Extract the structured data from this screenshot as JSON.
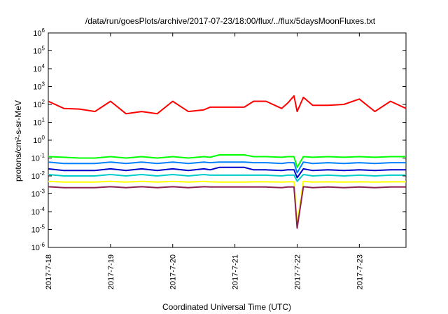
{
  "chart_data": {
    "type": "line",
    "title": "/data/run/goesPlots/archive/2017-07-23/18:00/flux/../flux/5daysMoonFluxes.txt",
    "xlabel": "Coordinated Universal Time (UTC)",
    "ylabel": "protons/cm²-s-sr-MeV",
    "yscale": "log",
    "ylim": [
      1e-06,
      1000000.0
    ],
    "xlim": [
      "2017-07-18",
      "2017-07-23 18:00"
    ],
    "grid": false,
    "legend": "none",
    "x_ticks": [
      "2017-7-18",
      "2017-7-19",
      "2017-7-20",
      "2017-7-21",
      "2017-7-22",
      "2017-7-23"
    ],
    "y_ticks": [
      {
        "mant": "10",
        "exp": "-6"
      },
      {
        "mant": "10",
        "exp": "-5"
      },
      {
        "mant": "10",
        "exp": "-4"
      },
      {
        "mant": "10",
        "exp": "-3"
      },
      {
        "mant": "10",
        "exp": "-2"
      },
      {
        "mant": "10",
        "exp": "-1"
      },
      {
        "mant": "10",
        "exp": "0"
      },
      {
        "mant": "10",
        "exp": "1"
      },
      {
        "mant": "10",
        "exp": "2"
      },
      {
        "mant": "10",
        "exp": "3"
      },
      {
        "mant": "10",
        "exp": "4"
      },
      {
        "mant": "10",
        "exp": "5"
      },
      {
        "mant": "10",
        "exp": "6"
      }
    ],
    "x_days": [
      0,
      0.25,
      0.5,
      0.75,
      1.0,
      1.25,
      1.5,
      1.75,
      2.0,
      2.25,
      2.5,
      2.6,
      2.75,
      3.0,
      3.15,
      3.3,
      3.5,
      3.75,
      3.85,
      3.95,
      4.0,
      4.1,
      4.25,
      4.5,
      4.75,
      5.0,
      5.25,
      5.5,
      5.75
    ],
    "series": [
      {
        "color": "#ff0000",
        "values": [
          150,
          60,
          55,
          40,
          150,
          30,
          40,
          30,
          150,
          40,
          50,
          70,
          70,
          70,
          70,
          150,
          150,
          60,
          120,
          300,
          40,
          250,
          90,
          90,
          100,
          200,
          40,
          150,
          60
        ]
      },
      {
        "color": "#00ff00",
        "values": [
          0.12,
          0.11,
          0.1,
          0.1,
          0.12,
          0.1,
          0.12,
          0.1,
          0.12,
          0.1,
          0.12,
          0.11,
          0.15,
          0.15,
          0.15,
          0.12,
          0.12,
          0.11,
          0.12,
          0.12,
          0.03,
          0.12,
          0.11,
          0.12,
          0.11,
          0.12,
          0.11,
          0.12,
          0.12
        ]
      },
      {
        "color": "#0080ff",
        "values": [
          0.06,
          0.05,
          0.05,
          0.05,
          0.06,
          0.05,
          0.06,
          0.05,
          0.06,
          0.05,
          0.06,
          0.055,
          0.06,
          0.06,
          0.06,
          0.055,
          0.055,
          0.05,
          0.055,
          0.055,
          0.015,
          0.06,
          0.05,
          0.055,
          0.05,
          0.055,
          0.05,
          0.055,
          0.055
        ]
      },
      {
        "color": "#0000cc",
        "values": [
          0.025,
          0.02,
          0.02,
          0.02,
          0.025,
          0.02,
          0.025,
          0.02,
          0.025,
          0.02,
          0.025,
          0.022,
          0.03,
          0.03,
          0.03,
          0.022,
          0.022,
          0.02,
          0.022,
          0.022,
          0.008,
          0.025,
          0.02,
          0.022,
          0.02,
          0.022,
          0.02,
          0.022,
          0.022
        ]
      },
      {
        "color": "#00cccc",
        "values": [
          0.012,
          0.01,
          0.01,
          0.01,
          0.012,
          0.01,
          0.012,
          0.01,
          0.012,
          0.01,
          0.012,
          0.011,
          0.011,
          0.011,
          0.011,
          0.011,
          0.011,
          0.01,
          0.011,
          0.011,
          0.005,
          0.012,
          0.01,
          0.011,
          0.01,
          0.011,
          0.01,
          0.011,
          0.011
        ]
      },
      {
        "color": "#ffff00",
        "values": [
          0.005,
          0.0045,
          0.0045,
          0.0045,
          0.005,
          0.0045,
          0.005,
          0.0045,
          0.005,
          0.0045,
          0.005,
          0.0047,
          0.0045,
          0.0045,
          0.0045,
          0.0047,
          0.0047,
          0.0045,
          0.0047,
          0.0047,
          2e-05,
          0.005,
          0.0045,
          0.0047,
          0.0045,
          0.0047,
          0.0045,
          0.0047,
          0.0047
        ]
      },
      {
        "color": "#8b2252",
        "values": [
          0.0025,
          0.0022,
          0.0022,
          0.0022,
          0.0025,
          0.0022,
          0.0025,
          0.0022,
          0.0025,
          0.0022,
          0.0025,
          0.0024,
          0.0024,
          0.0024,
          0.0024,
          0.0024,
          0.0024,
          0.0022,
          0.0024,
          0.0024,
          1.2e-05,
          0.0025,
          0.0022,
          0.0024,
          0.0022,
          0.0024,
          0.0022,
          0.0024,
          0.0024
        ]
      }
    ]
  }
}
